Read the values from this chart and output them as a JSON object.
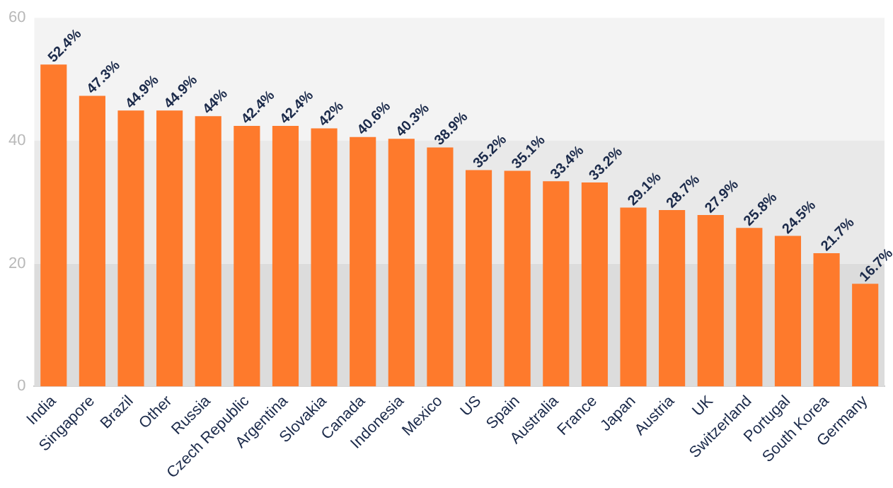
{
  "chart_data": {
    "type": "bar",
    "categories": [
      "India",
      "Singapore",
      "Brazil",
      "Other",
      "Russia",
      "Czech Republic",
      "Argentina",
      "Slovakia",
      "Canada",
      "Indonesia",
      "Mexico",
      "US",
      "Spain",
      "Australia",
      "France",
      "Japan",
      "Austria",
      "UK",
      "Switzerland",
      "Portugal",
      "South Korea",
      "Germany"
    ],
    "values": [
      52.4,
      47.3,
      44.9,
      44.9,
      44,
      42.4,
      42.4,
      42,
      40.6,
      40.3,
      38.9,
      35.2,
      35.1,
      33.4,
      33.2,
      29.1,
      28.7,
      27.9,
      25.8,
      24.5,
      21.7,
      16.7
    ],
    "value_labels": [
      "52.4%",
      "47.3%",
      "44.9%",
      "44.9%",
      "44%",
      "42.4%",
      "42.4%",
      "42%",
      "40.6%",
      "40.3%",
      "38.9%",
      "35.2%",
      "35.1%",
      "33.4%",
      "33.2%",
      "29.1%",
      "28.7%",
      "27.9%",
      "25.8%",
      "24.5%",
      "21.7%",
      "16.7%"
    ],
    "color": "#fe7a2c",
    "ylim": [
      0,
      60
    ],
    "yticks": [
      0,
      20,
      40,
      60
    ],
    "bands": [
      {
        "axis": "y",
        "from": 0,
        "to": 20,
        "color": "#dcdcdc"
      },
      {
        "axis": "y",
        "from": 20,
        "to": 40,
        "color": "#e9e9e9"
      },
      {
        "axis": "y",
        "from": 40,
        "to": 60,
        "color": "#f3f3f3"
      }
    ],
    "grid": false,
    "legend": false
  }
}
